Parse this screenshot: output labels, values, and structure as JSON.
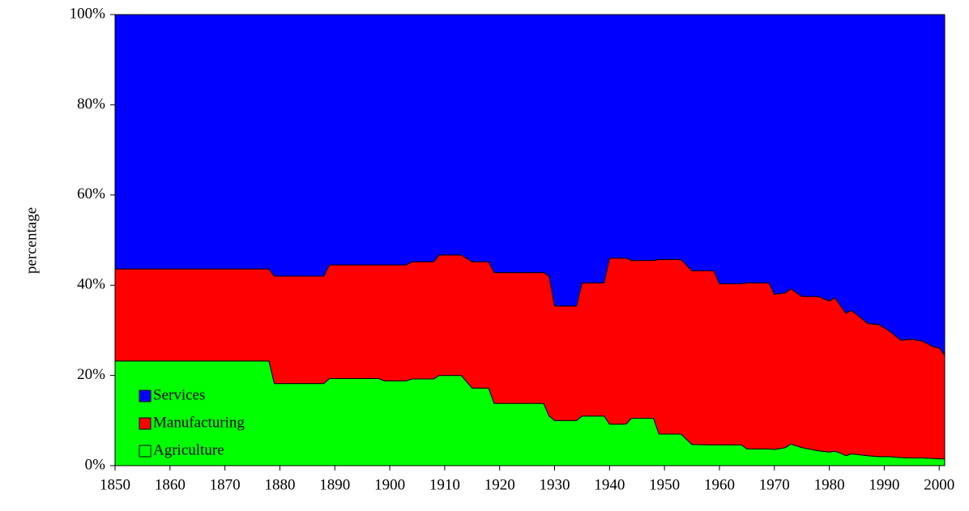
{
  "chart_data": {
    "type": "area",
    "stacked": true,
    "y_label": "percentage",
    "x": [
      1850,
      1878,
      1879,
      1888,
      1889,
      1898,
      1899,
      1903,
      1904,
      1908,
      1909,
      1913,
      1915,
      1918,
      1919,
      1928,
      1929,
      1930,
      1934,
      1935,
      1939,
      1940,
      1943,
      1944,
      1948,
      1949,
      1953,
      1955,
      1959,
      1960,
      1964,
      1965,
      1969,
      1970,
      1972,
      1973,
      1975,
      1978,
      1980,
      1981,
      1982,
      1983,
      1984,
      1985,
      1987,
      1989,
      1991,
      1993,
      1995,
      1997,
      1999,
      2000,
      2001
    ],
    "series": [
      {
        "name": "Agriculture",
        "color": "#00ff00",
        "values": [
          23.2,
          23.2,
          18.2,
          18.2,
          19.3,
          19.3,
          18.8,
          18.8,
          19.2,
          19.2,
          20.0,
          20.0,
          17.2,
          17.2,
          13.8,
          13.8,
          11.0,
          10.0,
          10.0,
          11.0,
          11.0,
          9.2,
          9.2,
          10.5,
          10.5,
          7.0,
          7.0,
          4.7,
          4.6,
          4.6,
          4.6,
          3.7,
          3.7,
          3.6,
          4.0,
          4.8,
          4.0,
          3.3,
          3.0,
          3.2,
          2.8,
          2.2,
          2.6,
          2.5,
          2.2,
          2.0,
          2.0,
          1.8,
          1.7,
          1.7,
          1.6,
          1.5,
          1.5
        ]
      },
      {
        "name": "Manufacturing",
        "color": "#ff0000",
        "values": [
          20.4,
          20.4,
          23.8,
          23.8,
          25.2,
          25.2,
          25.7,
          25.7,
          26.0,
          26.0,
          26.7,
          26.7,
          28.0,
          28.0,
          29.0,
          29.0,
          31.0,
          25.4,
          25.4,
          29.5,
          29.5,
          36.8,
          36.8,
          35.0,
          35.0,
          38.7,
          38.7,
          38.5,
          38.6,
          35.7,
          35.7,
          36.8,
          36.8,
          34.4,
          34.3,
          34.4,
          33.5,
          34.2,
          33.5,
          34.0,
          32.7,
          31.6,
          31.8,
          31.0,
          29.3,
          29.3,
          27.8,
          26.0,
          26.3,
          25.9,
          24.7,
          24.6,
          23.0
        ]
      },
      {
        "name": "Services",
        "color": "#0000ff",
        "values": [
          56.4,
          56.4,
          58.0,
          58.0,
          55.5,
          55.5,
          55.5,
          55.5,
          54.8,
          54.8,
          53.3,
          53.3,
          54.8,
          54.8,
          57.2,
          57.2,
          58.0,
          64.6,
          64.6,
          59.5,
          59.5,
          54.0,
          54.0,
          54.5,
          54.5,
          54.3,
          54.3,
          56.8,
          56.8,
          59.7,
          59.7,
          59.5,
          59.5,
          62.0,
          61.7,
          60.8,
          62.5,
          62.5,
          63.5,
          62.8,
          64.5,
          66.2,
          65.6,
          66.5,
          68.5,
          68.7,
          70.2,
          72.2,
          72.0,
          72.4,
          73.7,
          73.9,
          75.5
        ]
      }
    ],
    "xlim": [
      1850,
      2001
    ],
    "xticks": [
      1850,
      1860,
      1870,
      1880,
      1890,
      1900,
      1910,
      1920,
      1930,
      1940,
      1950,
      1960,
      1970,
      1980,
      1990,
      2000
    ],
    "ylim": [
      0,
      100
    ],
    "yticks": [
      {
        "value": 0,
        "label": "0%"
      },
      {
        "value": 20,
        "label": "20%"
      },
      {
        "value": 40,
        "label": "40%"
      },
      {
        "value": 60,
        "label": "60%"
      },
      {
        "value": 80,
        "label": "80%"
      },
      {
        "value": 100,
        "label": "100%"
      }
    ],
    "legend": "lower left"
  }
}
